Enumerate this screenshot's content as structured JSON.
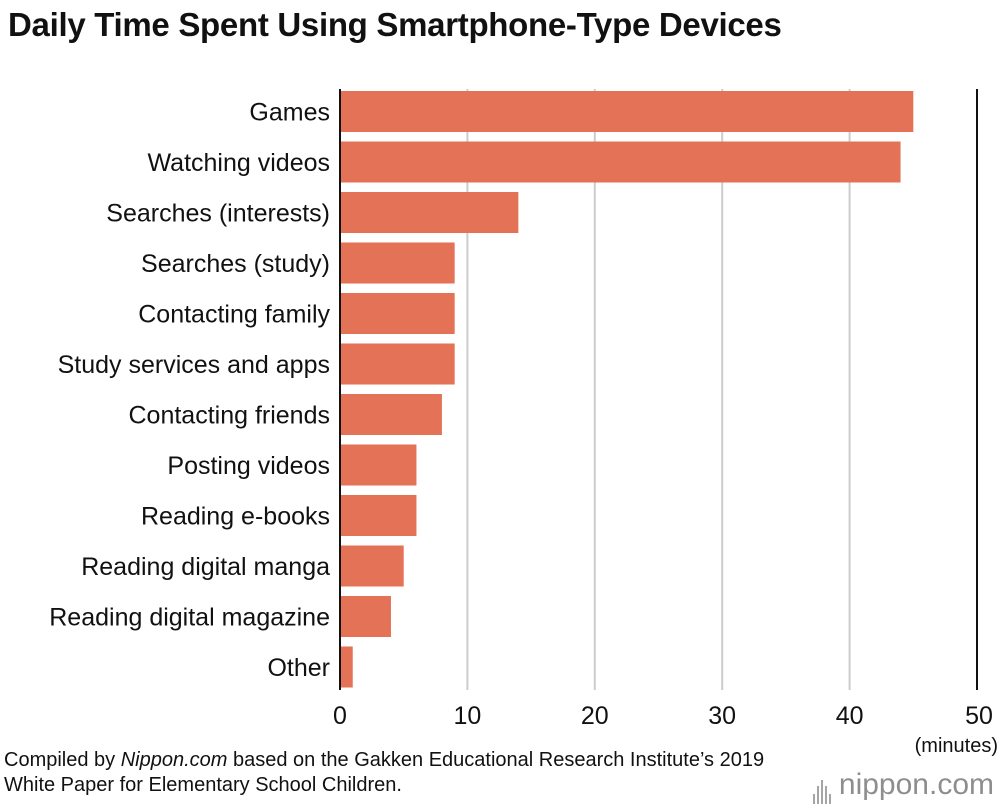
{
  "chart_data": {
    "type": "bar",
    "orientation": "horizontal",
    "title": "Daily Time Spent Using Smartphone-Type Devices",
    "xlabel": "(minutes)",
    "ylabel": "",
    "categories": [
      "Games",
      "Watching videos",
      "Searches (interests)",
      "Searches (study)",
      "Contacting family",
      "Study services and apps",
      "Contacting friends",
      "Posting videos",
      "Reading e-books",
      "Reading digital manga",
      "Reading digital magazine",
      "Other"
    ],
    "values": [
      45,
      44,
      14,
      9,
      9,
      9,
      8,
      6,
      6,
      5,
      4,
      1
    ],
    "xlim": [
      0,
      50
    ],
    "xticks": [
      0,
      10,
      20,
      30,
      40,
      50
    ],
    "grid": true,
    "legend": "none",
    "bar_color": "#e37256"
  },
  "source": {
    "prefix": "Compiled by ",
    "emphasis": "Nippon.com",
    "suffix": " based on the Gakken Educational Research Institute’s 2019 White Paper for Elementary School Children."
  },
  "branding": {
    "logo_text": "nippon.com"
  }
}
